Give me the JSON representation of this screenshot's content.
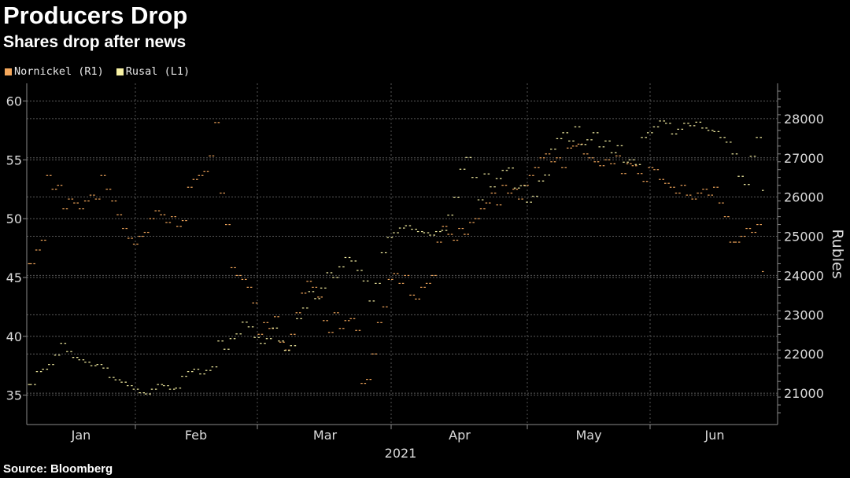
{
  "chart_data": {
    "type": "bar",
    "subtype": "ohlc",
    "title": "Producers Drop",
    "subtitle": "Shares drop after news",
    "source": "Source: Bloomberg",
    "year_label": "2021",
    "right_axis_title": "Rubles",
    "x_months": [
      "Jan",
      "Feb",
      "Mar",
      "Apr",
      "May",
      "Jun"
    ],
    "left_axis": {
      "range": [
        32.5,
        61.5
      ],
      "ticks": [
        35,
        40,
        45,
        50,
        55,
        60
      ],
      "tick_labels": [
        "35",
        "40",
        "45",
        "50",
        "55",
        "60"
      ]
    },
    "right_axis": {
      "range": [
        20200,
        28900
      ],
      "ticks": [
        21000,
        22000,
        23000,
        24000,
        25000,
        26000,
        27000,
        28000
      ],
      "tick_labels": [
        "21000",
        "22000",
        "23000",
        "24000",
        "25000",
        "26000",
        "27000",
        "28000"
      ]
    },
    "series": [
      {
        "name": "Nornickel (R1)",
        "axis": "right",
        "color": "#f5a85c",
        "closes": [
          24300,
          24650,
          24900,
          26550,
          26200,
          26300,
          25700,
          25950,
          25850,
          25700,
          25900,
          26050,
          25950,
          26550,
          26200,
          25900,
          25550,
          25200,
          24950,
          24800,
          25000,
          25100,
          25450,
          25650,
          25550,
          25350,
          25500,
          25250,
          25400,
          26250,
          26450,
          26550,
          26650,
          27050,
          27900,
          26100,
          25300,
          24200,
          24000,
          23900,
          23700,
          23300,
          22500,
          22800,
          22650,
          22950,
          22300,
          22100,
          22500,
          23050,
          23550,
          23850,
          23700,
          23450,
          22850,
          22550,
          23050,
          22650,
          22850,
          22900,
          22600,
          21250,
          21350,
          22000,
          22800,
          23200,
          23900,
          24050,
          23800,
          24000,
          23500,
          23400,
          23700,
          23800,
          24000,
          24850,
          25250,
          25050,
          24900,
          25200,
          25050,
          25350,
          25450,
          25700,
          25850,
          26100,
          25800,
          26300,
          26100,
          26200,
          25950,
          26300,
          26550,
          26750,
          27000,
          27100,
          26900,
          27000,
          26750,
          27250,
          27300,
          27350,
          27100,
          27000,
          26900,
          26800,
          26950,
          26850,
          27050,
          26600,
          26850,
          26800,
          26600,
          26400,
          26750,
          26700,
          26450,
          26350,
          26250,
          26100,
          26300,
          26050,
          25950,
          26100,
          26200,
          26050,
          26250,
          25850,
          25500,
          24850,
          24850,
          25000,
          25200,
          25100,
          25300,
          24100
        ]
      },
      {
        "name": "Rusal (L1)",
        "axis": "left",
        "color": "#f8f2a4",
        "closes": [
          35.9,
          37.0,
          37.2,
          37.6,
          38.4,
          39.4,
          38.7,
          38.2,
          38.0,
          37.8,
          37.5,
          37.6,
          37.3,
          36.5,
          36.3,
          36.1,
          35.8,
          35.5,
          35.2,
          35.1,
          35.5,
          35.9,
          35.8,
          35.5,
          35.6,
          36.6,
          37.0,
          37.2,
          36.8,
          37.1,
          37.4,
          39.6,
          38.9,
          39.8,
          40.2,
          41.2,
          40.8,
          39.9,
          39.4,
          39.8,
          40.7,
          39.6,
          38.8,
          39.2,
          41.5,
          42.4,
          43.8,
          43.2,
          44.1,
          45.4,
          45.0,
          45.9,
          46.7,
          46.4,
          45.6,
          44.7,
          43.0,
          44.5,
          47.1,
          48.4,
          48.8,
          49.2,
          49.4,
          49.1,
          48.9,
          48.8,
          48.6,
          48.9,
          49.0,
          50.3,
          51.8,
          54.2,
          55.2,
          53.5,
          51.6,
          53.8,
          52.7,
          53.4,
          54.1,
          54.3,
          52.6,
          52.8,
          51.4,
          51.9,
          53.2,
          53.7,
          55.9,
          56.8,
          57.3,
          56.6,
          57.8,
          56.3,
          56.7,
          57.3,
          56.1,
          56.6,
          55.6,
          56.2,
          54.8,
          55.0,
          54.6,
          56.9,
          57.3,
          57.8,
          58.3,
          58.1,
          57.2,
          57.6,
          58.1,
          57.9,
          58.2,
          57.7,
          57.5,
          57.4,
          56.9,
          56.5,
          55.5,
          53.6,
          52.9,
          55.3,
          56.9,
          52.4
        ],
        "offset": 0
      }
    ]
  }
}
